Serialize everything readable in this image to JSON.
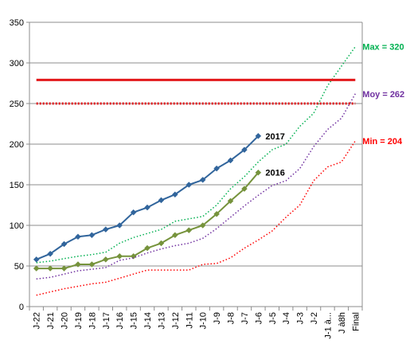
{
  "chart_data": {
    "type": "line",
    "title": "",
    "xlabel": "",
    "ylabel": "",
    "ylim": [
      0,
      350
    ],
    "y_ticks": [
      "0",
      "50",
      "100",
      "150",
      "200",
      "250",
      "300",
      "350"
    ],
    "grid": "horizontal",
    "x": [
      "J-22",
      "J-21",
      "J-20",
      "J-19",
      "J-18",
      "J-17",
      "J-16",
      "J-15",
      "J-14",
      "J-13",
      "J-12",
      "J-11",
      "J-10",
      "J-9",
      "J-8",
      "J-7",
      "J-6",
      "J-5",
      "J-4",
      "J-3",
      "J-2",
      "J-1 à...",
      "J à8h",
      "Final"
    ],
    "series": [
      {
        "color": "#31659c",
        "style": "solid-marker-diamond",
        "values": [
          58,
          65,
          77,
          86,
          88,
          95,
          100,
          116,
          122,
          131,
          138,
          150,
          156,
          170,
          180,
          193,
          210,
          null,
          null,
          null,
          null,
          null,
          null,
          null
        ]
      },
      {
        "color": "#76933c",
        "style": "solid-marker-diamond",
        "values": [
          47,
          47,
          47,
          52,
          52,
          58,
          62,
          62,
          72,
          78,
          88,
          94,
          100,
          114,
          130,
          145,
          165,
          null,
          null,
          null,
          null,
          null,
          null,
          null
        ]
      },
      {
        "color": "#00b050",
        "style": "dotted",
        "values": [
          54,
          56,
          59,
          62,
          64,
          67,
          78,
          85,
          90,
          95,
          105,
          108,
          111,
          125,
          145,
          160,
          178,
          193,
          200,
          222,
          238,
          272,
          296,
          320
        ]
      },
      {
        "color": "#7030a0",
        "style": "dotted",
        "values": [
          34,
          36,
          40,
          44,
          46,
          48,
          57,
          60,
          66,
          71,
          75,
          78,
          84,
          96,
          110,
          124,
          137,
          149,
          155,
          170,
          197,
          218,
          232,
          262
        ]
      },
      {
        "color": "#ff0000",
        "style": "dotted",
        "values": [
          14,
          18,
          22,
          25,
          28,
          30,
          35,
          40,
          45,
          45,
          45,
          45,
          52,
          53,
          60,
          72,
          82,
          93,
          110,
          125,
          155,
          172,
          178,
          204
        ]
      },
      {
        "color": "#e31a1c",
        "style": "solid-thick",
        "values": [
          279,
          279,
          279,
          279,
          279,
          279,
          279,
          279,
          279,
          279,
          279,
          279,
          279,
          279,
          279,
          279,
          279,
          279,
          279,
          279,
          279,
          279,
          279,
          279
        ]
      },
      {
        "color": "#e31a1c",
        "style": "dotted-thick",
        "values": [
          250,
          250,
          250,
          250,
          250,
          250,
          250,
          250,
          250,
          250,
          250,
          250,
          250,
          250,
          250,
          250,
          250,
          250,
          250,
          250,
          250,
          250,
          250,
          250
        ]
      }
    ],
    "annotations": [
      {
        "text": "2017",
        "series": 0,
        "index": 16,
        "color": "#000000"
      },
      {
        "text": "2016",
        "series": 1,
        "index": 16,
        "color": "#000000"
      },
      {
        "text": "Max = 320",
        "series": 2,
        "index": 23,
        "color": "#00b050"
      },
      {
        "text": "Moy = 262",
        "series": 3,
        "index": 23,
        "color": "#7030a0"
      },
      {
        "text": "Min = 204",
        "series": 4,
        "index": 23,
        "color": "#ff0000"
      }
    ]
  }
}
